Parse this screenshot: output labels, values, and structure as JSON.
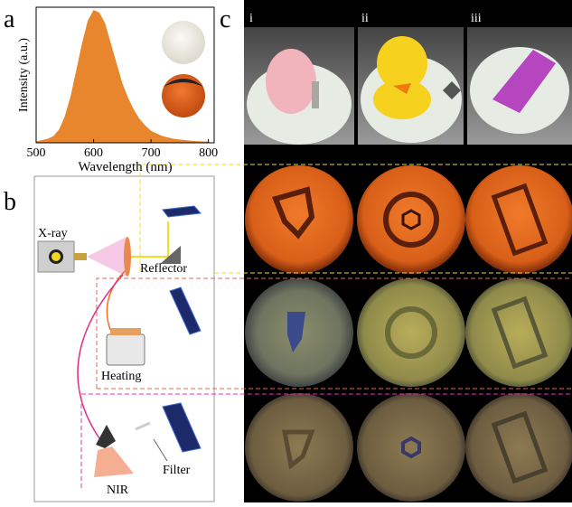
{
  "panel_labels": [
    "a",
    "b",
    "c"
  ],
  "chart_data": {
    "type": "area",
    "xlabel": "Wavelength (nm)",
    "ylabel": "Intensity (a.u.)",
    "color": "#e8862e",
    "x": [
      500,
      510,
      520,
      530,
      540,
      550,
      560,
      570,
      580,
      590,
      600,
      610,
      620,
      630,
      640,
      650,
      660,
      670,
      680,
      690,
      700,
      710,
      720,
      730,
      740,
      750,
      760,
      770,
      780,
      790,
      800
    ],
    "values": [
      0.01,
      0.02,
      0.03,
      0.05,
      0.1,
      0.2,
      0.35,
      0.55,
      0.75,
      0.92,
      1.0,
      0.98,
      0.9,
      0.75,
      0.6,
      0.45,
      0.34,
      0.25,
      0.18,
      0.13,
      0.09,
      0.07,
      0.05,
      0.04,
      0.03,
      0.025,
      0.02,
      0.015,
      0.012,
      0.01,
      0.01
    ],
    "xlim": [
      500,
      810
    ],
    "ylim": [
      0,
      1.02
    ],
    "xticks": [
      500,
      600,
      700,
      800
    ]
  },
  "diagram": {
    "xray": "X-ray",
    "reflector": "Reflector",
    "heating": "Heating",
    "nir": "NIR",
    "filter": "Filter"
  },
  "photos": {
    "columns": [
      "i",
      "ii",
      "iii"
    ]
  }
}
